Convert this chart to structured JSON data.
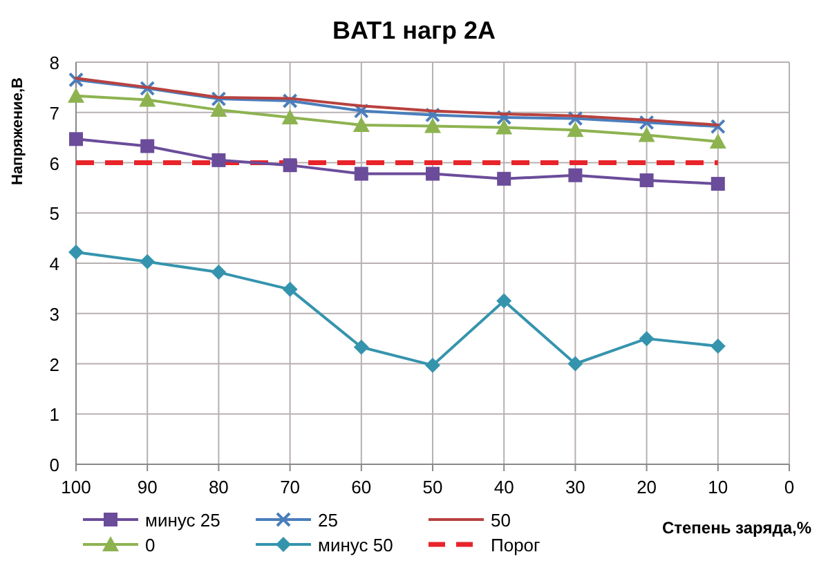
{
  "chart_data": {
    "type": "line",
    "title": "BAT1 нагр 2А",
    "xlabel": "Степень заряда,%",
    "ylabel": "Напряжение,В",
    "x": [
      100,
      90,
      80,
      70,
      60,
      50,
      40,
      30,
      20,
      10
    ],
    "xlim": [
      100,
      0
    ],
    "xticks": [
      100,
      90,
      80,
      70,
      60,
      50,
      40,
      30,
      20,
      10,
      0
    ],
    "ylim": [
      0,
      8
    ],
    "yticks": [
      0,
      1,
      2,
      3,
      4,
      5,
      6,
      7,
      8
    ],
    "grid": true,
    "legend": "bottom",
    "series": [
      {
        "name": "минус 25",
        "color": "#6b4c9a",
        "marker": "square",
        "values": [
          6.47,
          6.33,
          6.05,
          5.95,
          5.78,
          5.78,
          5.68,
          5.75,
          5.65,
          5.58
        ]
      },
      {
        "name": "25",
        "color": "#4a7ebb",
        "marker": "cross",
        "values": [
          7.65,
          7.48,
          7.27,
          7.23,
          7.03,
          6.95,
          6.9,
          6.88,
          6.8,
          6.72
        ]
      },
      {
        "name": "50",
        "color": "#b8413f",
        "marker": "none",
        "values": [
          7.68,
          7.5,
          7.3,
          7.28,
          7.13,
          7.03,
          6.97,
          6.93,
          6.85,
          6.75
        ]
      },
      {
        "name": "0",
        "color": "#8db350",
        "marker": "triangle",
        "values": [
          7.33,
          7.25,
          7.05,
          6.9,
          6.75,
          6.73,
          6.7,
          6.65,
          6.55,
          6.42
        ]
      },
      {
        "name": "минус 50",
        "color": "#3594ad",
        "marker": "diamond",
        "values": [
          4.22,
          4.03,
          3.82,
          3.48,
          2.33,
          1.97,
          3.25,
          2.0,
          2.5,
          2.35
        ]
      }
    ],
    "ref_lines": [
      {
        "axis": "y",
        "value": 6,
        "label": "Порог",
        "color": "#e8242a",
        "line_style": "dashed"
      }
    ]
  }
}
